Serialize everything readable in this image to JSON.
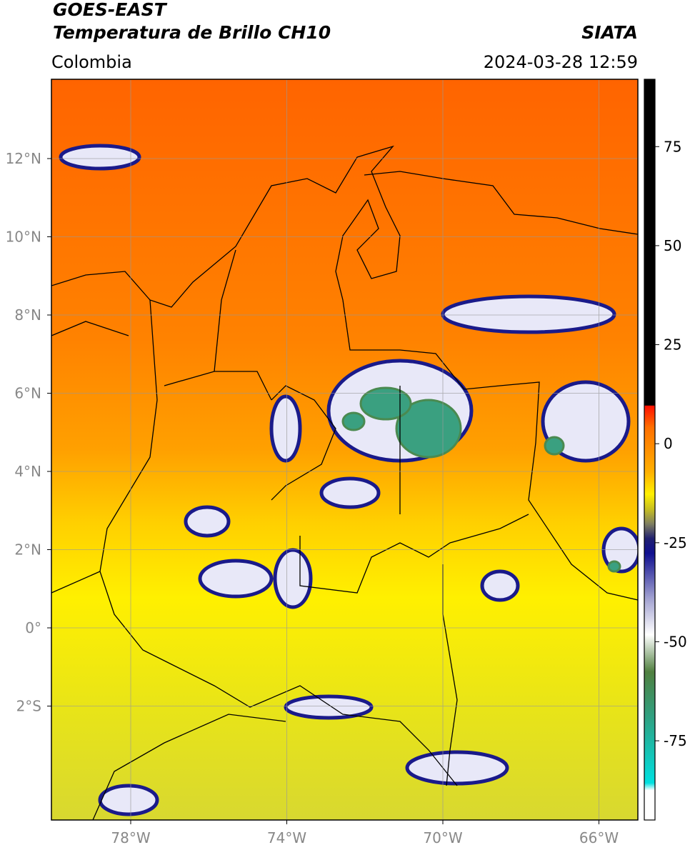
{
  "header": {
    "title": "GOES-EAST",
    "subtitle": "Temperatura de Brillo CH10",
    "source": "SIATA",
    "region": "Colombia",
    "datetime": "2024-03-28 12:59"
  },
  "map": {
    "lat_labels": [
      "12°N",
      "10°N",
      "8°N",
      "6°N",
      "4°N",
      "2°N",
      "0°",
      "2°S"
    ],
    "lon_labels": [
      "78°W",
      "74°W",
      "70°W",
      "66°W"
    ]
  },
  "colorbar": {
    "range": [
      -95,
      92
    ],
    "ticks": [
      75,
      50,
      25,
      0,
      -25,
      -50,
      -75
    ]
  }
}
